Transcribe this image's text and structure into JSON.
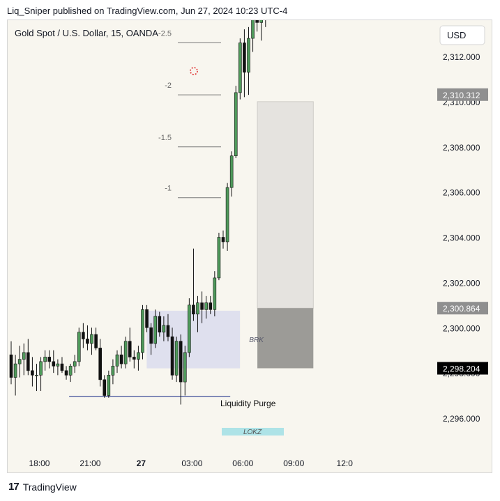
{
  "header": {
    "published": "Liq_Sniper published on TradingView.com, Jun 27, 2024 10:23 UTC-4"
  },
  "footer": {
    "brand": "TradingView"
  },
  "chart_data": {
    "type": "candlestick",
    "title": "Gold Spot / U.S. Dollar, 15, OANDA",
    "currency_button": "USD",
    "y_axis": {
      "range": [
        2294.5,
        2314
      ],
      "ticks": [
        "2,296.000",
        "2,298.000",
        "2,300.000",
        "2,302.000",
        "2,304.000",
        "2,306.000",
        "2,308.000",
        "2,310.000",
        "2,312.000"
      ],
      "tick_values": [
        2296,
        2298,
        2300,
        2302,
        2304,
        2306,
        2308,
        2310,
        2312
      ]
    },
    "x_axis": {
      "ticks": [
        {
          "label": "18:00",
          "bar": 6
        },
        {
          "label": "21:00",
          "bar": 18
        },
        {
          "label": "27",
          "bar": 30,
          "bold": true
        },
        {
          "label": "03:00",
          "bar": 42
        },
        {
          "label": "06:00",
          "bar": 54
        },
        {
          "label": "09:00",
          "bar": 66
        },
        {
          "label": "12:0",
          "bar": 78
        }
      ]
    },
    "price_labels": [
      {
        "text": "2,310.312",
        "value": 2310.312,
        "color": "#8f8f8f"
      },
      {
        "text": "2,300.864",
        "value": 2300.864,
        "color": "#8f8f8f"
      },
      {
        "text": "2,298.204",
        "value": 2298.204,
        "color": "#000000"
      }
    ],
    "fib_levels": [
      {
        "label": "-2.5",
        "value": 2312.6
      },
      {
        "label": "-2",
        "value": 2310.3
      },
      {
        "label": "-1.5",
        "value": 2308.0
      },
      {
        "label": "-1",
        "value": 2305.75
      }
    ],
    "annotations": {
      "brk_label": "BRK",
      "liquidity_label": "Liquidity Purge",
      "lokz_label": "LOKZ"
    },
    "zones": {
      "brk_box": {
        "bar_start": 32.3,
        "bar_end": 54.3,
        "top": 2300.75,
        "bottom": 2298.2
      },
      "target_box": {
        "bar_start": 58.4,
        "bar_end": 71.6,
        "top": 2310.0,
        "bottom": 2300.864
      },
      "stop_box": {
        "bar_start": 58.4,
        "bar_end": 71.6,
        "top": 2300.864,
        "bottom": 2298.204
      },
      "liquidity_line": {
        "bar_start": 14,
        "bar_end": 52,
        "value": 2296.95
      }
    },
    "candles": [
      {
        "o": 2298.8,
        "h": 2299.4,
        "l": 2297.5,
        "c": 2297.8
      },
      {
        "o": 2297.8,
        "h": 2298.8,
        "l": 2297.0,
        "c": 2298.4
      },
      {
        "o": 2298.4,
        "h": 2299.2,
        "l": 2297.8,
        "c": 2298.6
      },
      {
        "o": 2298.6,
        "h": 2299.3,
        "l": 2297.9,
        "c": 2298.9
      },
      {
        "o": 2298.9,
        "h": 2299.5,
        "l": 2297.9,
        "c": 2298.1
      },
      {
        "o": 2298.1,
        "h": 2298.7,
        "l": 2297.4,
        "c": 2297.9
      },
      {
        "o": 2297.9,
        "h": 2298.4,
        "l": 2297.2,
        "c": 2297.9
      },
      {
        "o": 2297.9,
        "h": 2298.7,
        "l": 2297.2,
        "c": 2298.5
      },
      {
        "o": 2298.5,
        "h": 2299.0,
        "l": 2298.1,
        "c": 2298.7
      },
      {
        "o": 2298.7,
        "h": 2299.0,
        "l": 2298.2,
        "c": 2298.5
      },
      {
        "o": 2298.5,
        "h": 2299.0,
        "l": 2298.0,
        "c": 2298.3
      },
      {
        "o": 2298.3,
        "h": 2298.6,
        "l": 2297.9,
        "c": 2298.4
      },
      {
        "o": 2298.4,
        "h": 2298.7,
        "l": 2298.0,
        "c": 2298.1
      },
      {
        "o": 2298.1,
        "h": 2298.3,
        "l": 2297.7,
        "c": 2297.9
      },
      {
        "o": 2297.9,
        "h": 2298.4,
        "l": 2297.6,
        "c": 2298.3
      },
      {
        "o": 2298.3,
        "h": 2298.8,
        "l": 2298.0,
        "c": 2298.5
      },
      {
        "o": 2298.5,
        "h": 2300.0,
        "l": 2298.3,
        "c": 2299.8
      },
      {
        "o": 2299.8,
        "h": 2300.2,
        "l": 2299.1,
        "c": 2299.5
      },
      {
        "o": 2299.5,
        "h": 2300.1,
        "l": 2299.0,
        "c": 2299.3
      },
      {
        "o": 2299.3,
        "h": 2300.0,
        "l": 2298.8,
        "c": 2299.7
      },
      {
        "o": 2299.7,
        "h": 2300.0,
        "l": 2299.0,
        "c": 2299.1
      },
      {
        "o": 2299.1,
        "h": 2299.5,
        "l": 2297.4,
        "c": 2297.7
      },
      {
        "o": 2297.7,
        "h": 2297.9,
        "l": 2296.9,
        "c": 2297.0
      },
      {
        "o": 2297.0,
        "h": 2298.1,
        "l": 2296.9,
        "c": 2297.9
      },
      {
        "o": 2297.9,
        "h": 2298.6,
        "l": 2297.5,
        "c": 2298.3
      },
      {
        "o": 2298.3,
        "h": 2299.0,
        "l": 2298.0,
        "c": 2298.8
      },
      {
        "o": 2298.8,
        "h": 2299.2,
        "l": 2298.2,
        "c": 2298.4
      },
      {
        "o": 2298.4,
        "h": 2299.6,
        "l": 2298.2,
        "c": 2299.4
      },
      {
        "o": 2299.4,
        "h": 2300.0,
        "l": 2298.5,
        "c": 2298.7
      },
      {
        "o": 2298.7,
        "h": 2299.0,
        "l": 2298.2,
        "c": 2298.6
      },
      {
        "o": 2298.6,
        "h": 2299.2,
        "l": 2298.1,
        "c": 2298.9
      },
      {
        "o": 2298.9,
        "h": 2301.0,
        "l": 2298.6,
        "c": 2300.8
      },
      {
        "o": 2300.8,
        "h": 2301.0,
        "l": 2299.8,
        "c": 2300.0
      },
      {
        "o": 2300.0,
        "h": 2300.2,
        "l": 2298.8,
        "c": 2299.3
      },
      {
        "o": 2299.3,
        "h": 2300.8,
        "l": 2299.1,
        "c": 2300.5
      },
      {
        "o": 2300.5,
        "h": 2300.7,
        "l": 2299.6,
        "c": 2299.8
      },
      {
        "o": 2299.8,
        "h": 2300.5,
        "l": 2299.4,
        "c": 2300.1
      },
      {
        "o": 2300.1,
        "h": 2300.6,
        "l": 2299.4,
        "c": 2299.6
      },
      {
        "o": 2299.6,
        "h": 2300.0,
        "l": 2297.7,
        "c": 2297.9
      },
      {
        "o": 2297.9,
        "h": 2299.6,
        "l": 2297.6,
        "c": 2299.4
      },
      {
        "o": 2299.4,
        "h": 2299.7,
        "l": 2296.6,
        "c": 2297.6
      },
      {
        "o": 2297.6,
        "h": 2299.2,
        "l": 2297.0,
        "c": 2298.9
      },
      {
        "o": 2298.9,
        "h": 2301.3,
        "l": 2298.7,
        "c": 2301.0
      },
      {
        "o": 2301.0,
        "h": 2303.5,
        "l": 2300.3,
        "c": 2300.6
      },
      {
        "o": 2300.6,
        "h": 2301.4,
        "l": 2299.8,
        "c": 2301.1
      },
      {
        "o": 2301.1,
        "h": 2301.6,
        "l": 2300.2,
        "c": 2300.8
      },
      {
        "o": 2300.8,
        "h": 2301.4,
        "l": 2300.4,
        "c": 2301.1
      },
      {
        "o": 2301.1,
        "h": 2301.4,
        "l": 2300.6,
        "c": 2300.8
      },
      {
        "o": 2300.8,
        "h": 2302.5,
        "l": 2300.5,
        "c": 2302.2
      },
      {
        "o": 2302.2,
        "h": 2304.2,
        "l": 2302.1,
        "c": 2304.0
      },
      {
        "o": 2304.0,
        "h": 2304.3,
        "l": 2303.5,
        "c": 2303.8
      },
      {
        "o": 2303.8,
        "h": 2306.4,
        "l": 2303.4,
        "c": 2306.2
      },
      {
        "o": 2306.2,
        "h": 2307.8,
        "l": 2305.8,
        "c": 2307.6
      },
      {
        "o": 2307.6,
        "h": 2310.7,
        "l": 2307.5,
        "c": 2310.4
      },
      {
        "o": 2310.4,
        "h": 2312.8,
        "l": 2310.1,
        "c": 2312.6
      },
      {
        "o": 2312.6,
        "h": 2313.2,
        "l": 2310.2,
        "c": 2311.3
      },
      {
        "o": 2311.3,
        "h": 2313.3,
        "l": 2310.3,
        "c": 2312.8
      },
      {
        "o": 2312.8,
        "h": 2313.9,
        "l": 2312.2,
        "c": 2313.7
      },
      {
        "o": 2313.7,
        "h": 2314.0,
        "l": 2313.1,
        "c": 2313.5
      },
      {
        "o": 2313.5,
        "h": 2314.0,
        "l": 2312.7,
        "c": 2313.8
      },
      {
        "o": 2313.8,
        "h": 2314.0,
        "l": 2313.3,
        "c": 2313.9
      }
    ],
    "colors": {
      "up_body": "#4f9a5b",
      "down_body": "#111111",
      "wick": "#111111",
      "brk_box": "#dfe0ee",
      "target_box": "#e5e3df",
      "stop_box": "#9c9b97",
      "lokz_box": "#aee3e7",
      "liquidity_line": "#2b3a8f",
      "fib_line": "#787878",
      "fib_text": "#666666",
      "axis_text": "#131722"
    }
  }
}
